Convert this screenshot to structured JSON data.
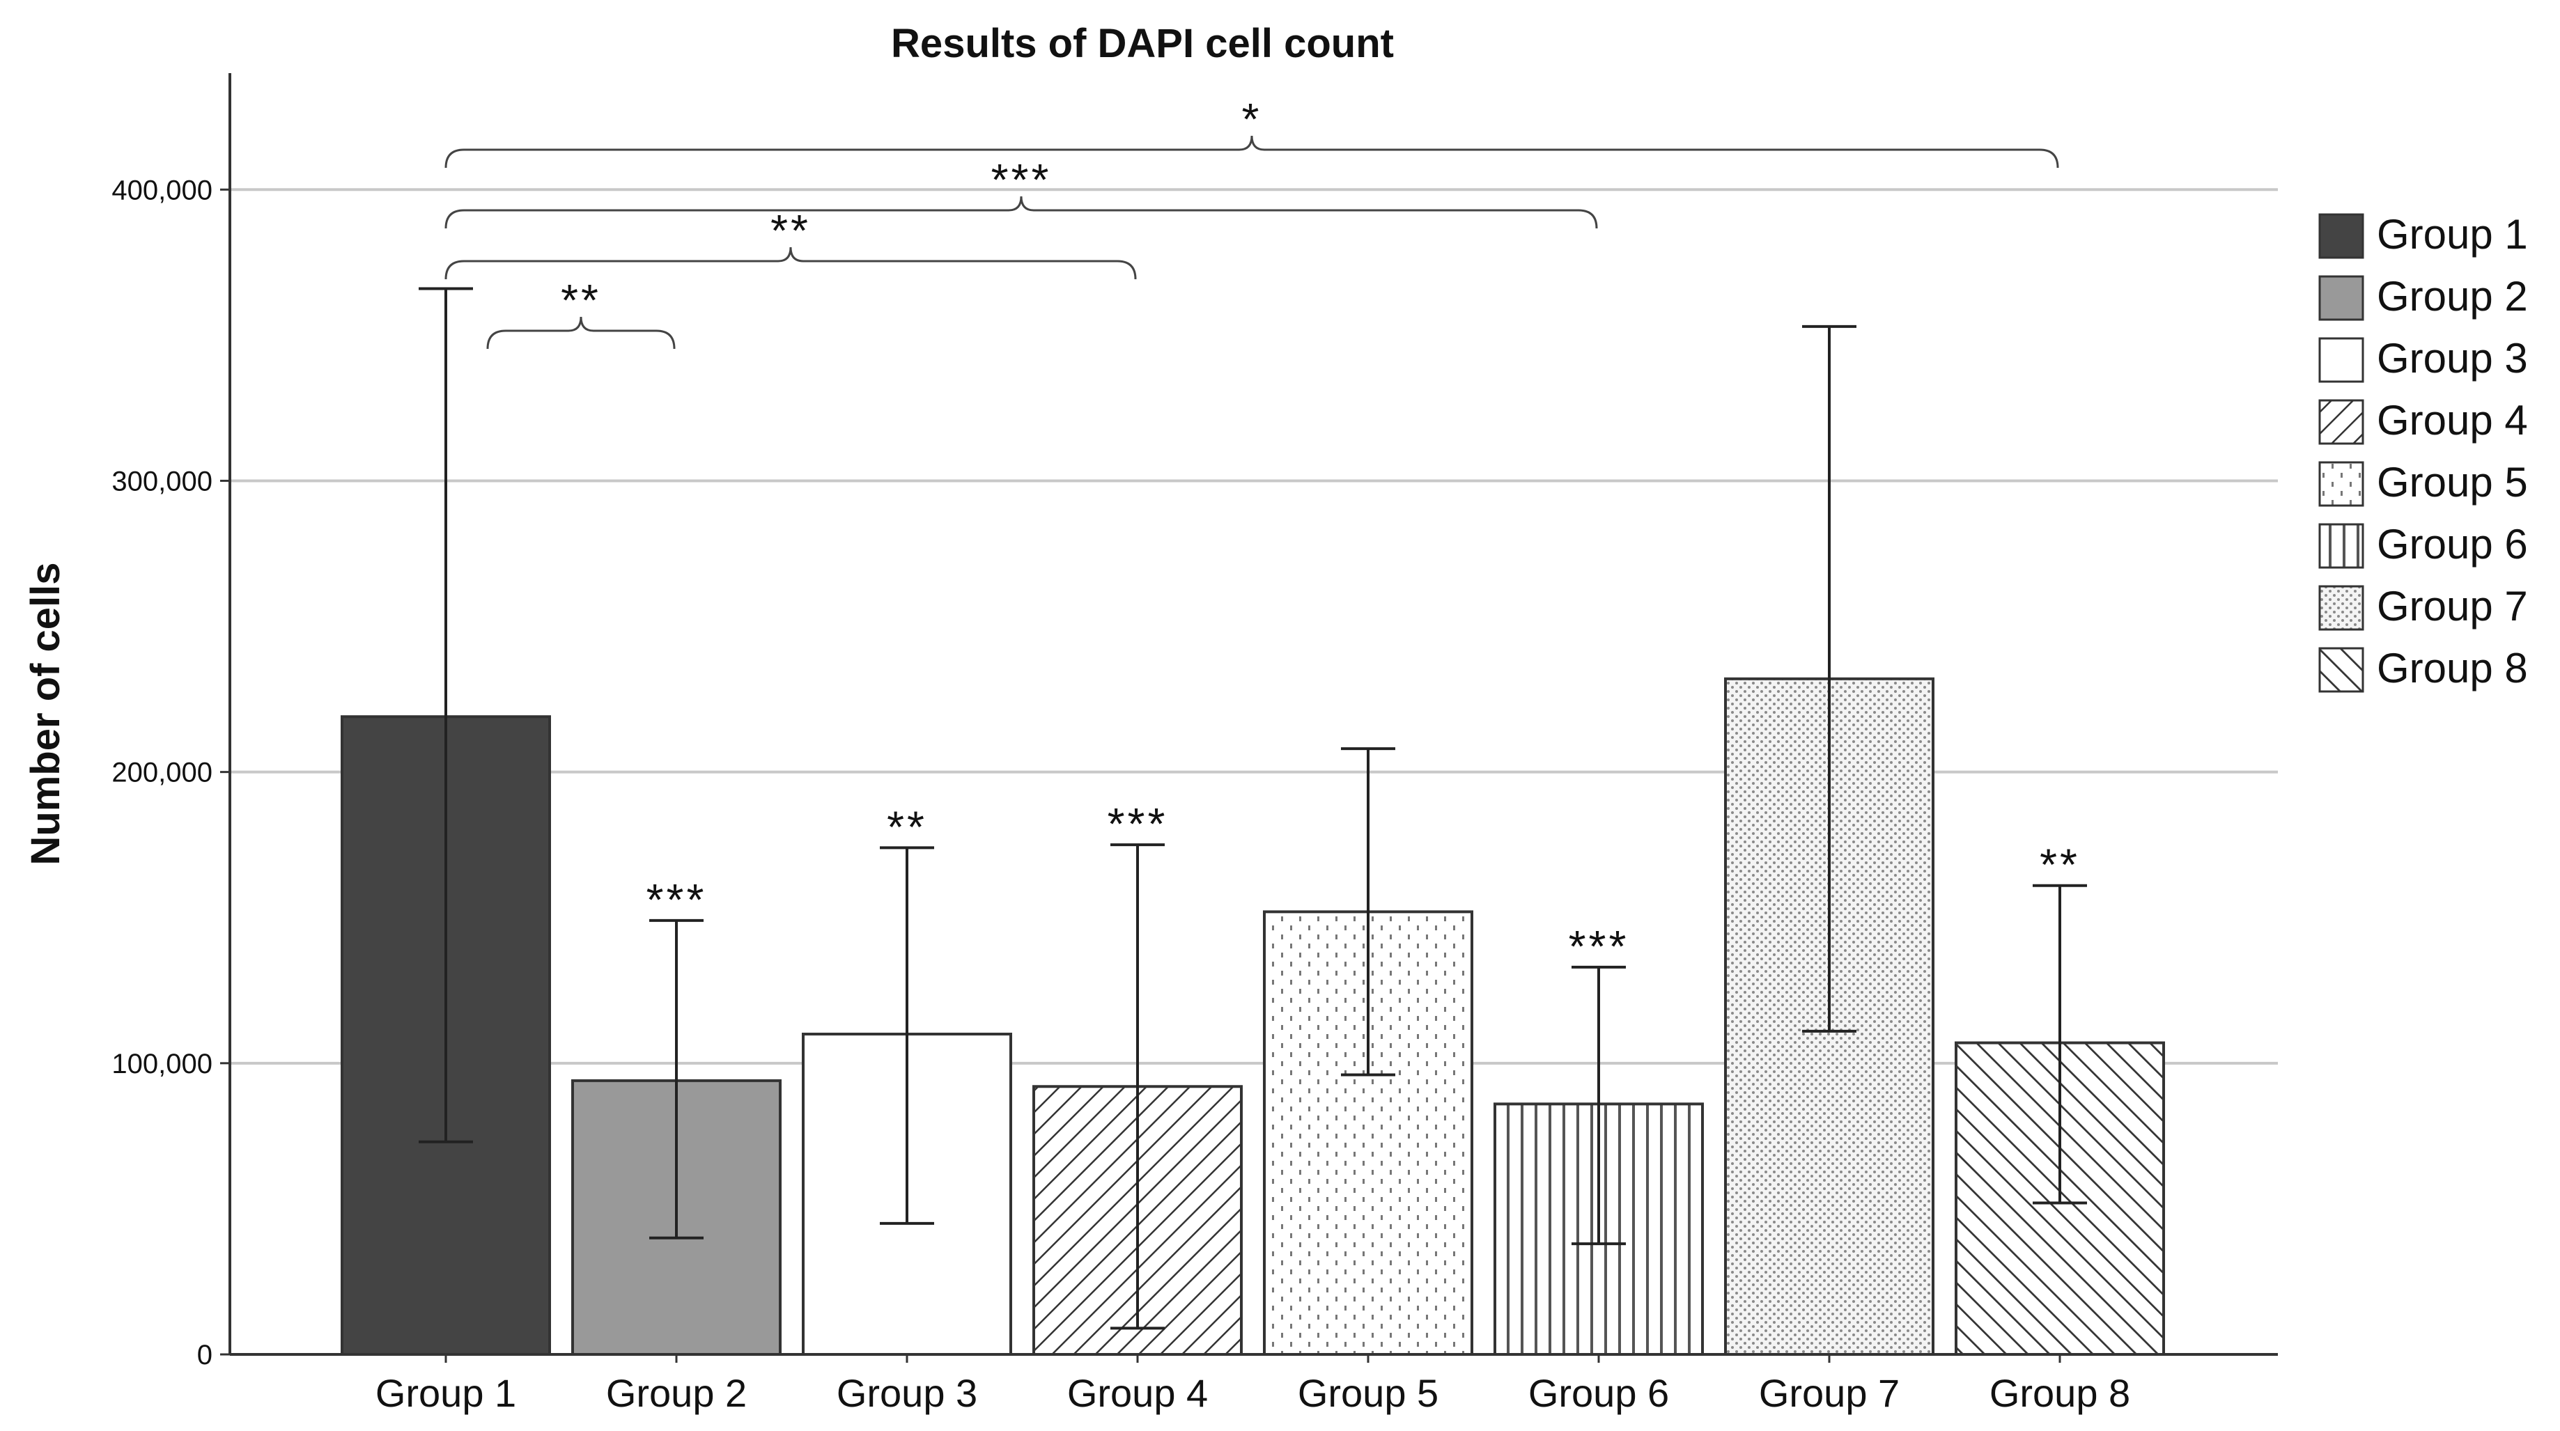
{
  "chart_data": {
    "type": "bar",
    "title": "Results of DAPI cell count",
    "xlabel": "",
    "ylabel": "Number of cells",
    "ylim": [
      0,
      440000
    ],
    "yticks": [
      0,
      100000,
      200000,
      300000,
      400000
    ],
    "ytick_labels": [
      "0",
      "100,000",
      "200,000",
      "300,000",
      "400,000"
    ],
    "grid": true,
    "legend_position": "right",
    "categories": [
      "Group 1",
      "Group 2",
      "Group 3",
      "Group 4",
      "Group 5",
      "Group 6",
      "Group 7",
      "Group 8"
    ],
    "values": [
      219000,
      94000,
      110000,
      92000,
      152000,
      86000,
      232000,
      107000
    ],
    "error_low": [
      73000,
      40000,
      45000,
      9000,
      96000,
      38000,
      111000,
      52000
    ],
    "error_high": [
      366000,
      149000,
      174000,
      175000,
      208000,
      133000,
      353000,
      161000
    ],
    "significance_marks": [
      "",
      "***",
      "**",
      "***",
      "",
      "***",
      "",
      "**"
    ],
    "comparison_brackets": [
      {
        "from": "Group 1",
        "to": "Group 2",
        "label": "**"
      },
      {
        "from": "Group 1",
        "to": "Group 4",
        "label": "**"
      },
      {
        "from": "Group 1",
        "to": "Group 6",
        "label": "***"
      },
      {
        "from": "Group 1",
        "to": "Group 8",
        "label": "*"
      }
    ],
    "fills": [
      "solid-dark",
      "solid-gray",
      "white",
      "diagonal-down",
      "dots",
      "vertical",
      "fine-dots",
      "diagonal-up"
    ],
    "colors": {
      "dark": "#444444",
      "gray": "#999999",
      "outline": "#333333",
      "grid": "#c8c8c8",
      "axis": "#333333",
      "text": "#111111"
    }
  }
}
